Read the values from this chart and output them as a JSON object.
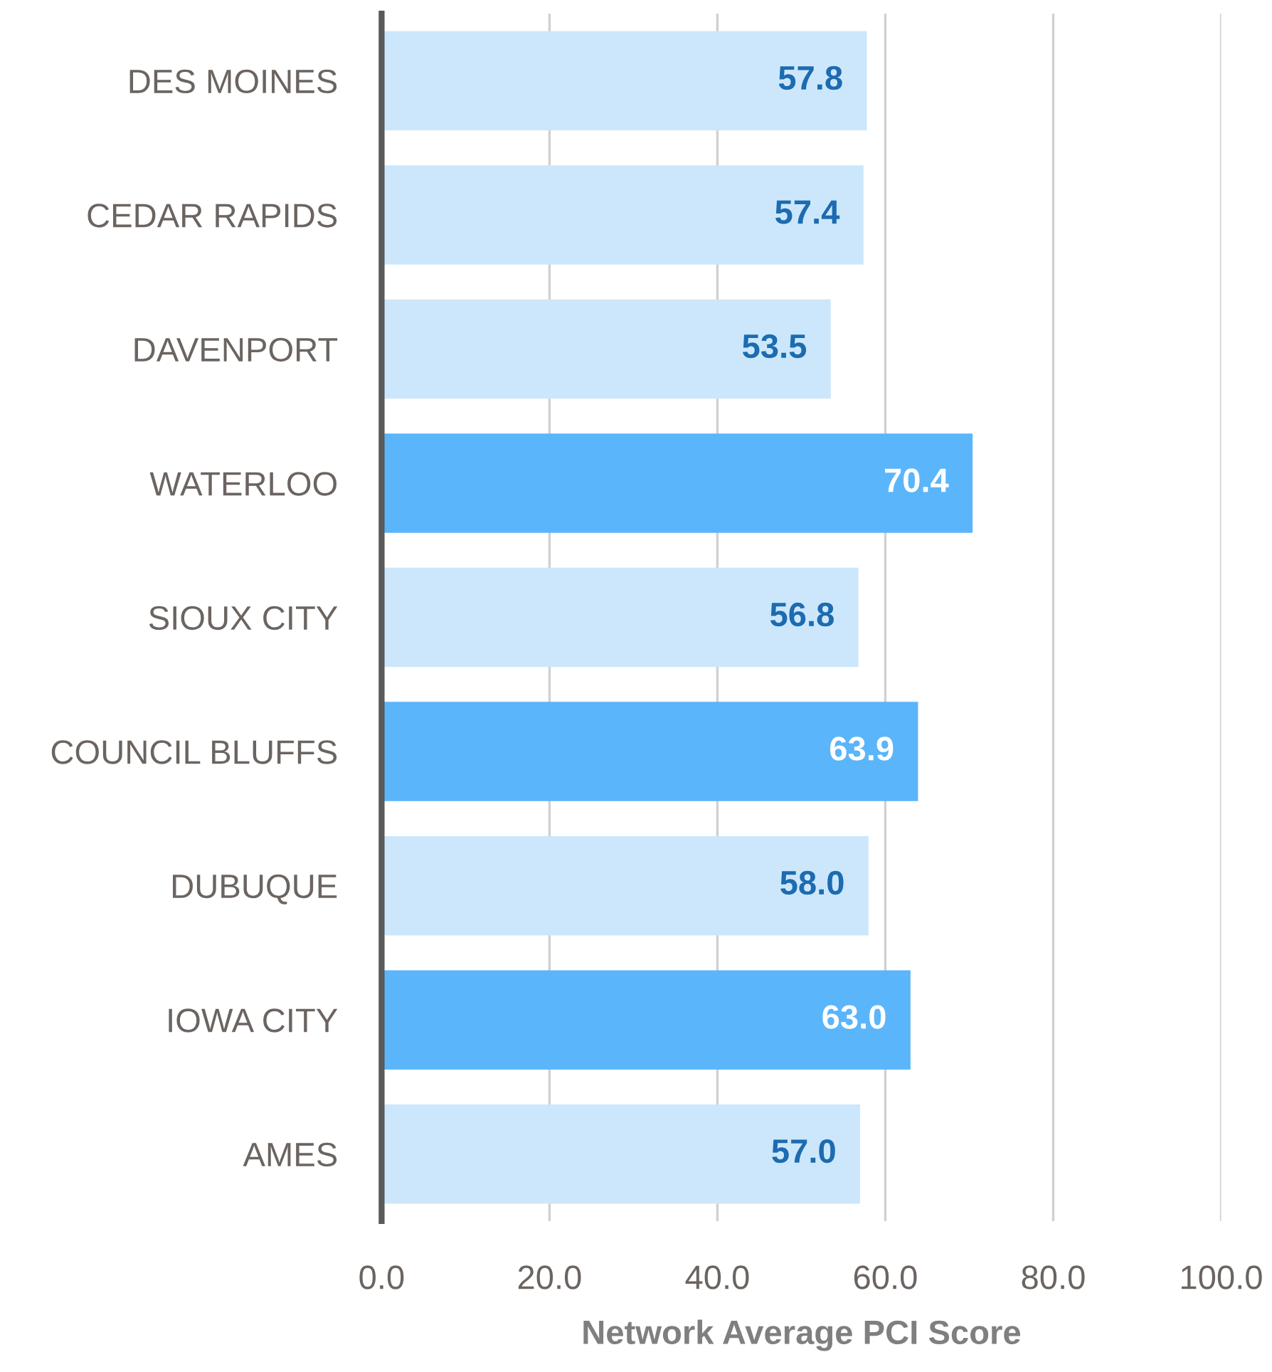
{
  "chart_data": {
    "type": "bar",
    "orientation": "horizontal",
    "xlabel": "Network Average PCI Score",
    "categories": [
      "DES MOINES",
      "CEDAR RAPIDS",
      "DAVENPORT",
      "WATERLOO",
      "SIOUX CITY",
      "COUNCIL BLUFFS",
      "DUBUQUE",
      "IOWA CITY",
      "AMES"
    ],
    "values": [
      57.8,
      57.4,
      53.5,
      70.4,
      56.8,
      63.9,
      58.0,
      63.0,
      57.0
    ],
    "colors": [
      "#cce7fc",
      "#cce7fc",
      "#cce7fc",
      "#5ab5fb",
      "#cce7fc",
      "#5ab5fb",
      "#cce7fc",
      "#5ab5fb",
      "#cce7fc"
    ],
    "xlim": [
      0,
      100
    ],
    "xticks": [
      {
        "value": 0,
        "label": "0.0"
      },
      {
        "value": 20,
        "label": "20.0"
      },
      {
        "value": 40,
        "label": "40.0"
      },
      {
        "value": 60,
        "label": "60.0"
      },
      {
        "value": 80,
        "label": "80.0"
      },
      {
        "value": 100,
        "label": "100.0"
      }
    ],
    "value_labels": [
      "57.8",
      "57.4",
      "53.5",
      "70.4",
      "56.8",
      "63.9",
      "58.0",
      "63.0",
      "57.0"
    ],
    "grid": "x"
  }
}
